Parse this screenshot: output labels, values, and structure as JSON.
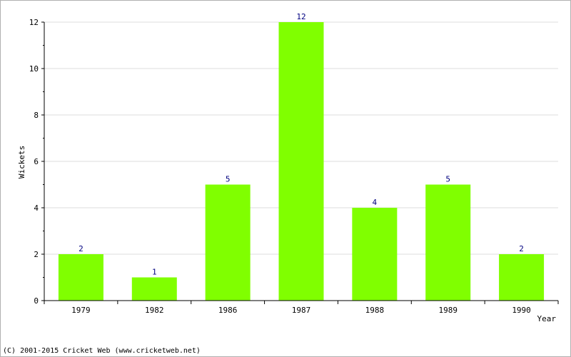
{
  "chart_data": {
    "type": "bar",
    "categories": [
      "1979",
      "1982",
      "1986",
      "1987",
      "1988",
      "1989",
      "1990"
    ],
    "values": [
      2,
      1,
      5,
      12,
      4,
      5,
      2
    ],
    "xlabel": "Year",
    "ylabel": "Wickets",
    "ylim": [
      0,
      12
    ],
    "yticks": [
      0,
      2,
      4,
      6,
      8,
      10,
      12
    ],
    "grid": true,
    "bar_color": "#80ff00",
    "value_label_color": "#000080",
    "grid_color": "#dddddd"
  },
  "footer": {
    "copyright": "(C) 2001-2015 Cricket Web (www.cricketweb.net)"
  }
}
